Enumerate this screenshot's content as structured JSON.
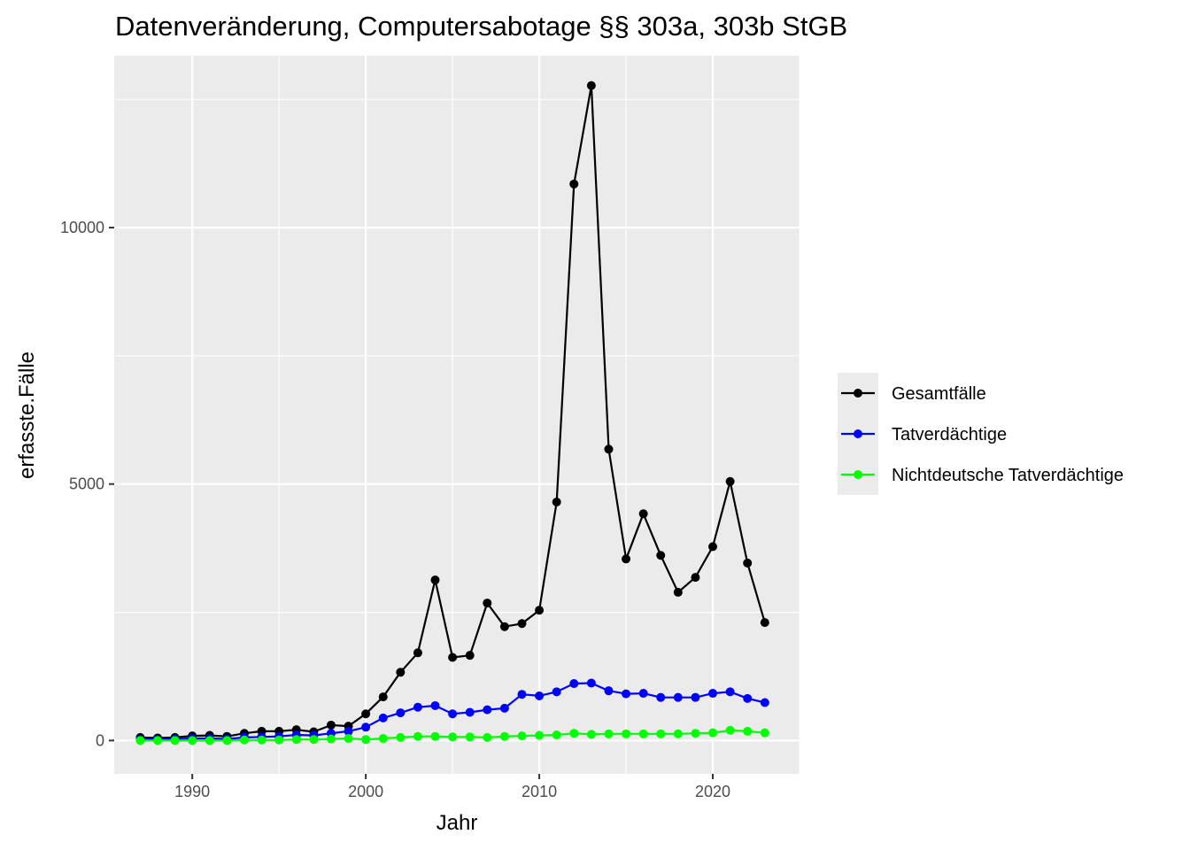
{
  "chart_data": {
    "type": "line",
    "title": "Datenveränderung, Computersabotage §§ 303a, 303b StGB",
    "xlabel": "Jahr",
    "ylabel": "erfasste.Fälle",
    "xlim": [
      1985.5,
      2025
    ],
    "ylim": [
      -650,
      13350
    ],
    "x_ticks": [
      1990,
      2000,
      2010,
      2020
    ],
    "y_ticks": [
      0,
      5000,
      10000
    ],
    "grid": true,
    "legend_position": "right",
    "x": [
      1987,
      1988,
      1989,
      1990,
      1991,
      1992,
      1993,
      1994,
      1995,
      1996,
      1997,
      1998,
      1999,
      2000,
      2001,
      2002,
      2003,
      2004,
      2005,
      2006,
      2007,
      2008,
      2009,
      2010,
      2011,
      2012,
      2013,
      2014,
      2015,
      2016,
      2017,
      2018,
      2019,
      2020,
      2021,
      2022,
      2023
    ],
    "series": [
      {
        "name": "Gesamtfälle",
        "color": "#000000",
        "values": [
          60,
          50,
          60,
          90,
          100,
          80,
          140,
          180,
          180,
          210,
          170,
          300,
          280,
          520,
          850,
          1330,
          1710,
          3130,
          1620,
          1660,
          2680,
          2220,
          2280,
          2540,
          4650,
          10850,
          12770,
          5680,
          3540,
          4420,
          3610,
          2890,
          3180,
          3780,
          5050,
          3460,
          2300
        ]
      },
      {
        "name": "Tatverdächtige",
        "color": "#0000ff",
        "values": [
          20,
          20,
          30,
          40,
          40,
          30,
          60,
          70,
          80,
          110,
          100,
          140,
          180,
          260,
          440,
          540,
          650,
          680,
          520,
          550,
          600,
          630,
          900,
          870,
          950,
          1110,
          1120,
          970,
          910,
          920,
          840,
          840,
          840,
          920,
          950,
          820,
          740
        ]
      },
      {
        "name": "Nichtdeutsche Tatverdächtige",
        "color": "#00ff00",
        "values": [
          0,
          0,
          0,
          0,
          0,
          0,
          10,
          10,
          10,
          20,
          20,
          30,
          40,
          20,
          40,
          60,
          80,
          80,
          70,
          70,
          60,
          80,
          90,
          100,
          110,
          140,
          120,
          130,
          130,
          130,
          130,
          130,
          140,
          150,
          200,
          180,
          150
        ]
      }
    ]
  }
}
